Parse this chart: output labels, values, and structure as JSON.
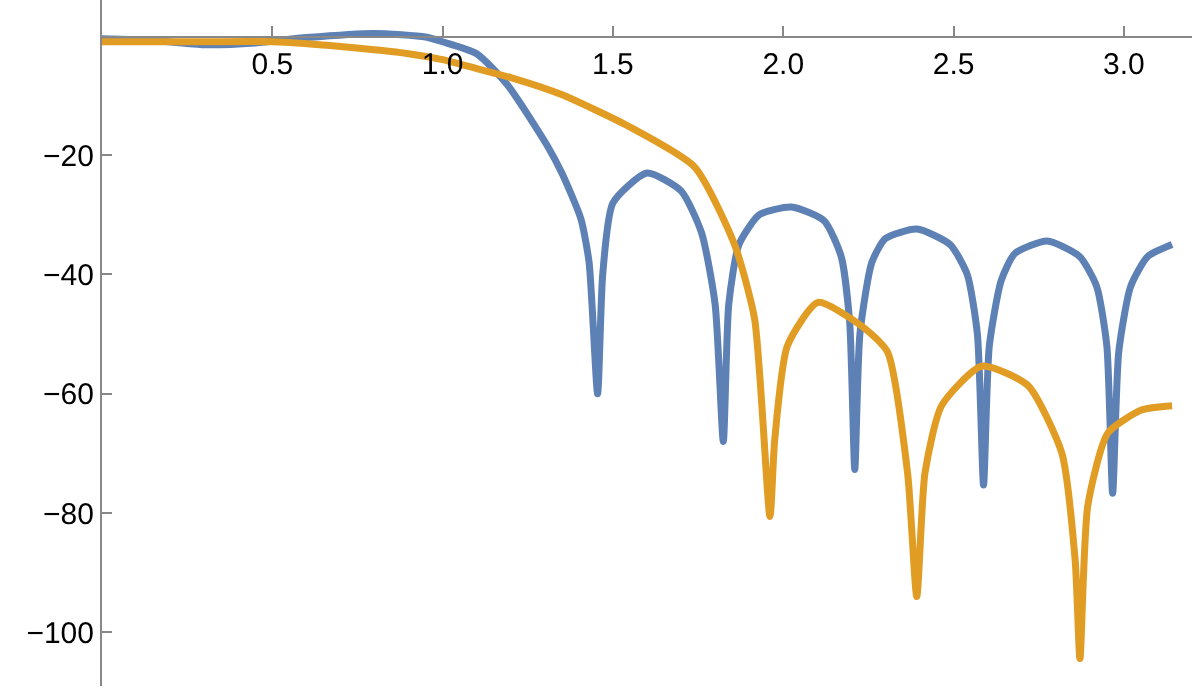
{
  "chart_data": {
    "type": "line",
    "xlim": [
      0,
      3.2
    ],
    "ylim": [
      -109,
      6
    ],
    "xticks": [
      0.5,
      {
        "value": 1,
        "label": "1.0"
      },
      1.5,
      {
        "value": 2,
        "label": "2.0"
      },
      2.5,
      {
        "value": 3,
        "label": "3.0"
      }
    ],
    "yticks": [
      -20,
      -40,
      -60,
      -80,
      -100
    ],
    "marker": "none",
    "line_style": "solid",
    "series": [
      {
        "color": "#5e81b5",
        "x": [
          0,
          0.15,
          0.3,
          0.45,
          0.6,
          0.8,
          0.95,
          1.0,
          1.1,
          1.19,
          1.306,
          1.35,
          1.406,
          1.43,
          1.455,
          1.47,
          1.5,
          1.6,
          1.7,
          1.76,
          1.8,
          1.824,
          1.84,
          1.87,
          1.93,
          2.024,
          2.12,
          2.17,
          2.195,
          2.21,
          2.225,
          2.26,
          2.3,
          2.392,
          2.49,
          2.54,
          2.57,
          2.588,
          2.605,
          2.64,
          2.68,
          2.775,
          2.87,
          2.92,
          2.95,
          2.967,
          2.985,
          3.02,
          3.07,
          3.1416
        ],
        "values": [
          -0.5,
          -0.8,
          -1.5,
          -1.2,
          -0.3,
          0.4,
          -0.2,
          -1,
          -3,
          -8.2,
          -18.3,
          -23,
          -30.7,
          -38,
          -60,
          -40,
          -28,
          -23,
          -26,
          -33,
          -45,
          -68,
          -45,
          -35,
          -30,
          -28.7,
          -31,
          -37,
          -48,
          -72.7,
          -50,
          -38,
          -34,
          -32.4,
          -35,
          -40,
          -50,
          -75.3,
          -52,
          -41,
          -36.5,
          -34.4,
          -37,
          -42,
          -52,
          -76.7,
          -53,
          -42,
          -37,
          -35
        ]
      },
      {
        "color": "#e19c24",
        "x": [
          0,
          0.3,
          0.5,
          0.7,
          0.9,
          1.0,
          1.1,
          1.2,
          1.347,
          1.54,
          1.74,
          1.857,
          1.916,
          1.961,
          1.975,
          2.012,
          2.102,
          2.229,
          2.306,
          2.365,
          2.392,
          2.416,
          2.465,
          2.582,
          2.718,
          2.818,
          2.857,
          2.871,
          2.894,
          2.953,
          3.053,
          3.1416
        ],
        "values": [
          -1,
          -1,
          -1,
          -1.8,
          -3,
          -4,
          -5.5,
          -7,
          -9.8,
          -15,
          -22,
          -35,
          -47.5,
          -80.6,
          -67.7,
          -52,
          -44.7,
          -48.6,
          -53,
          -73.3,
          -94,
          -73.3,
          -62,
          -55.4,
          -58.6,
          -70,
          -87.9,
          -104.4,
          -78.8,
          -66.6,
          -62.7,
          -62
        ]
      }
    ]
  }
}
